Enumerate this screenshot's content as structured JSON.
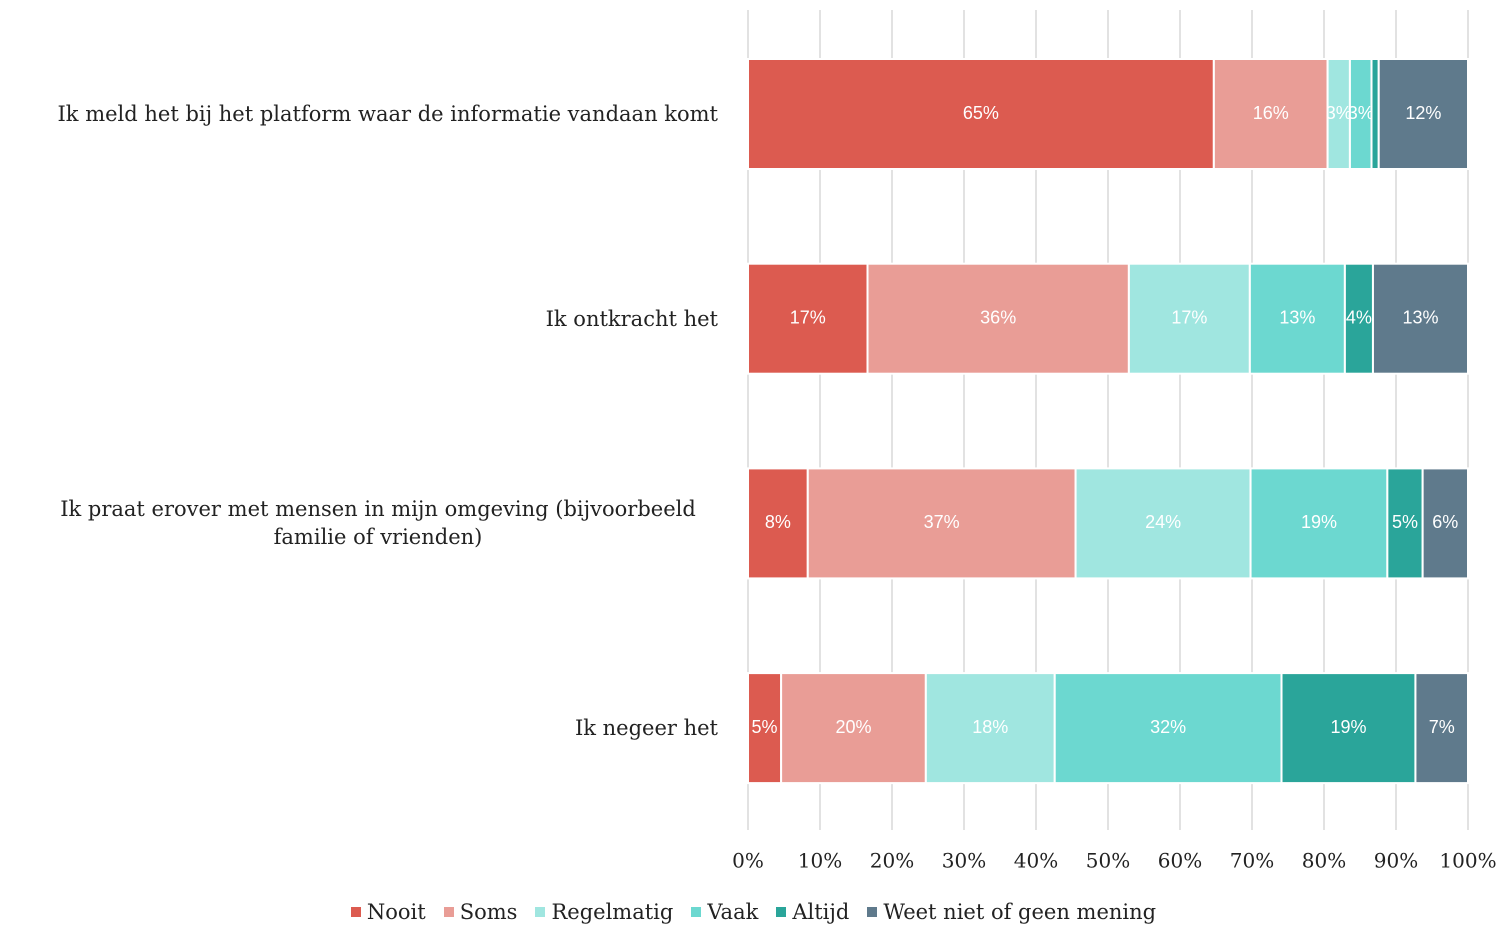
{
  "chart_data": {
    "type": "stacked-bar-horizontal",
    "categories": [
      "Ik meld het bij het platform waar de informatie vandaan komt",
      "Ik ontkracht het",
      "Ik praat erover met mensen in mijn omgeving (bijvoorbeeld familie of vrienden)",
      "Ik negeer het"
    ],
    "series": [
      {
        "name": "Nooit",
        "color": "#dc5b50",
        "values": [
          64.7,
          16.6,
          8.3,
          4.6
        ],
        "value_labels": [
          "65%",
          "17%",
          "8%",
          "5%"
        ]
      },
      {
        "name": "Soms",
        "color": "#e99d96",
        "values": [
          15.8,
          36.3,
          37.2,
          20.1
        ],
        "value_labels": [
          "16%",
          "36%",
          "37%",
          "20%"
        ]
      },
      {
        "name": "Regelmatig",
        "color": "#a0e6e0",
        "values": [
          3.1,
          16.8,
          24.3,
          17.9
        ],
        "value_labels": [
          "3%",
          "17%",
          "24%",
          "18%"
        ]
      },
      {
        "name": "Vaak",
        "color": "#6cd8d0",
        "values": [
          3.0,
          13.2,
          19.0,
          31.5
        ],
        "value_labels": [
          "3%",
          "13%",
          "19%",
          "32%"
        ]
      },
      {
        "name": "Altijd",
        "color": "#2aa59a",
        "values": [
          1.0,
          3.9,
          4.9,
          18.6
        ],
        "value_labels": [
          null,
          "4%",
          "5%",
          "19%"
        ]
      },
      {
        "name": "Weet niet of geen mening",
        "color": "#5f7a8c",
        "values": [
          12.4,
          13.2,
          6.3,
          7.3
        ],
        "value_labels": [
          "12%",
          "13%",
          "6%",
          "7%"
        ]
      }
    ],
    "xlim": [
      0,
      100
    ],
    "xticks": [
      {
        "value": 0,
        "label": "0%"
      },
      {
        "value": 10,
        "label": "10%"
      },
      {
        "value": 20,
        "label": "20%"
      },
      {
        "value": 30,
        "label": "30%"
      },
      {
        "value": 40,
        "label": "40%"
      },
      {
        "value": 50,
        "label": "50%"
      },
      {
        "value": 60,
        "label": "60%"
      },
      {
        "value": 70,
        "label": "70%"
      },
      {
        "value": 80,
        "label": "80%"
      },
      {
        "value": 90,
        "label": "90%"
      },
      {
        "value": 100,
        "label": "100%"
      }
    ],
    "grid": true,
    "legend": "bottom"
  }
}
